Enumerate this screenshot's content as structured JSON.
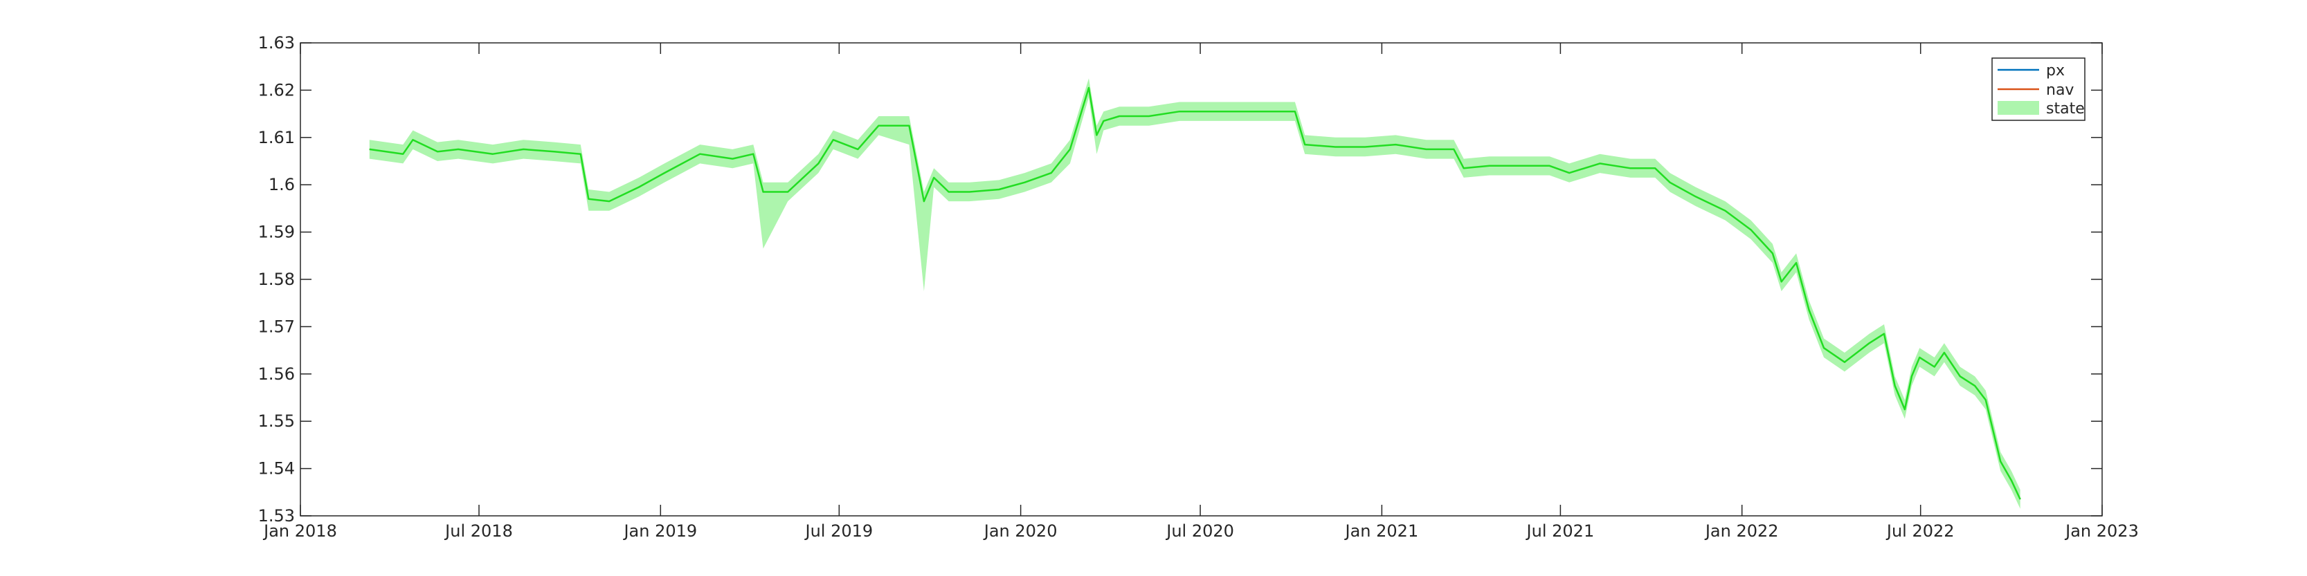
{
  "chart_data": {
    "type": "line",
    "title": "",
    "xlabel": "",
    "ylabel": "",
    "xlim": [
      "2018-01-01",
      "2023-01-01"
    ],
    "ylim": [
      1.53,
      1.63
    ],
    "yticks": [
      1.53,
      1.54,
      1.55,
      1.56,
      1.57,
      1.58,
      1.59,
      1.6,
      1.61,
      1.62,
      1.63
    ],
    "ytick_labels": [
      "1.53",
      "1.54",
      "1.55",
      "1.56",
      "1.57",
      "1.58",
      "1.59",
      "1.6",
      "1.61",
      "1.62",
      "1.63"
    ],
    "xticks": [
      "2018-01-01",
      "2018-07-01",
      "2019-01-01",
      "2019-07-01",
      "2020-01-01",
      "2020-07-01",
      "2021-01-01",
      "2021-07-01",
      "2022-01-01",
      "2022-07-01",
      "2023-01-01"
    ],
    "xtick_labels": [
      "Jan 2018",
      "Jul 2018",
      "Jan 2019",
      "Jul 2019",
      "Jan 2020",
      "Jul 2020",
      "Jan 2021",
      "Jul 2021",
      "Jan 2022",
      "Jul 2022",
      "Jan 2023"
    ],
    "grid": false,
    "legend": {
      "placement": "top-right",
      "entries": [
        {
          "label": "px",
          "kind": "line",
          "color": "#0072BD"
        },
        {
          "label": "nav",
          "kind": "line",
          "color": "#D95319"
        },
        {
          "label": "state",
          "kind": "band",
          "color": "#ADF5AD"
        }
      ]
    },
    "series": [
      {
        "name": "px",
        "color": "#0072BD",
        "x": [
          "2018-03-12",
          "2018-04-15",
          "2018-04-25",
          "2018-05-20",
          "2018-06-10",
          "2018-07-15",
          "2018-08-15",
          "2018-09-15",
          "2018-10-12",
          "2018-10-20",
          "2018-11-10",
          "2018-12-10",
          "2019-01-05",
          "2019-02-10",
          "2019-03-15",
          "2019-04-05",
          "2019-04-15",
          "2019-05-10",
          "2019-06-10",
          "2019-06-25",
          "2019-07-20",
          "2019-08-10",
          "2019-09-10",
          "2019-09-25",
          "2019-10-05",
          "2019-10-20",
          "2019-11-10",
          "2019-12-10",
          "2020-01-05",
          "2020-02-01",
          "2020-02-20",
          "2020-03-10",
          "2020-03-18",
          "2020-03-25",
          "2020-04-10",
          "2020-05-10",
          "2020-06-10",
          "2020-07-10",
          "2020-08-10",
          "2020-09-10",
          "2020-10-05",
          "2020-10-15",
          "2020-11-15",
          "2020-12-15",
          "2021-01-15",
          "2021-02-15",
          "2021-03-15",
          "2021-03-25",
          "2021-04-20",
          "2021-05-20",
          "2021-06-20",
          "2021-07-10",
          "2021-08-10",
          "2021-09-10",
          "2021-10-05",
          "2021-10-20",
          "2021-11-15",
          "2021-12-15",
          "2022-01-10",
          "2022-02-01",
          "2022-02-10",
          "2022-02-25",
          "2022-03-10",
          "2022-03-25",
          "2022-04-15",
          "2022-05-10",
          "2022-05-25",
          "2022-06-05",
          "2022-06-15",
          "2022-06-22",
          "2022-06-30",
          "2022-07-15",
          "2022-07-25",
          "2022-08-10",
          "2022-08-25",
          "2022-09-05",
          "2022-09-20",
          "2022-10-01",
          "2022-10-10"
        ],
        "values": [
          1.6075,
          1.6065,
          1.6095,
          1.607,
          1.6075,
          1.6065,
          1.6075,
          1.607,
          1.6065,
          1.597,
          1.5965,
          1.5995,
          1.6025,
          1.6065,
          1.6055,
          1.6065,
          1.5985,
          1.5985,
          1.6045,
          1.6095,
          1.6075,
          1.6125,
          1.6125,
          1.5965,
          1.6015,
          1.5985,
          1.5985,
          1.599,
          1.6005,
          1.6025,
          1.6075,
          1.6205,
          1.6105,
          1.6135,
          1.6145,
          1.6145,
          1.6155,
          1.6155,
          1.6155,
          1.6155,
          1.6155,
          1.6085,
          1.608,
          1.608,
          1.6085,
          1.6075,
          1.6075,
          1.6035,
          1.604,
          1.604,
          1.604,
          1.6025,
          1.6045,
          1.6035,
          1.6035,
          1.6005,
          1.5975,
          1.5945,
          1.5905,
          1.5855,
          1.5795,
          1.5835,
          1.5735,
          1.5655,
          1.5625,
          1.5665,
          1.5685,
          1.5575,
          1.5525,
          1.5595,
          1.5635,
          1.5615,
          1.5645,
          1.5595,
          1.5575,
          1.5545,
          1.5415,
          1.5375,
          1.5335
        ]
      },
      {
        "name": "nav",
        "color": "#D95319",
        "x": [
          "2018-03-12",
          "2018-04-15",
          "2018-04-25",
          "2018-05-20",
          "2018-06-10",
          "2018-07-15",
          "2018-08-15",
          "2018-09-15",
          "2018-10-12",
          "2018-10-20",
          "2018-11-10",
          "2018-12-10",
          "2019-01-05",
          "2019-02-10",
          "2019-03-15",
          "2019-04-05",
          "2019-04-15",
          "2019-05-10",
          "2019-06-10",
          "2019-06-25",
          "2019-07-20",
          "2019-08-10",
          "2019-09-10",
          "2019-09-25",
          "2019-10-05",
          "2019-10-20",
          "2019-11-10",
          "2019-12-10",
          "2020-01-05",
          "2020-02-01",
          "2020-02-20",
          "2020-03-10",
          "2020-03-18",
          "2020-03-25",
          "2020-04-10",
          "2020-05-10",
          "2020-06-10",
          "2020-07-10",
          "2020-08-10",
          "2020-09-10",
          "2020-10-05",
          "2020-10-15",
          "2020-11-15",
          "2020-12-15",
          "2021-01-15",
          "2021-02-15",
          "2021-03-15",
          "2021-03-25",
          "2021-04-20",
          "2021-05-20",
          "2021-06-20",
          "2021-07-10",
          "2021-08-10",
          "2021-09-10",
          "2021-10-05",
          "2021-10-20",
          "2021-11-15",
          "2021-12-15",
          "2022-01-10",
          "2022-02-01",
          "2022-02-10",
          "2022-02-25",
          "2022-03-10",
          "2022-03-25",
          "2022-04-15",
          "2022-05-10",
          "2022-05-25",
          "2022-06-05",
          "2022-06-15",
          "2022-06-22",
          "2022-06-30",
          "2022-07-15",
          "2022-07-25",
          "2022-08-10",
          "2022-08-25",
          "2022-09-05",
          "2022-09-20",
          "2022-10-01",
          "2022-10-10"
        ],
        "values": [
          1.6075,
          1.6065,
          1.6095,
          1.607,
          1.6075,
          1.6065,
          1.6075,
          1.607,
          1.6065,
          1.597,
          1.5965,
          1.5995,
          1.6025,
          1.6065,
          1.6055,
          1.6065,
          1.5985,
          1.5985,
          1.6045,
          1.6095,
          1.6075,
          1.6125,
          1.6125,
          1.5965,
          1.6015,
          1.5985,
          1.5985,
          1.599,
          1.6005,
          1.6025,
          1.6075,
          1.6205,
          1.6105,
          1.6135,
          1.6145,
          1.6145,
          1.6155,
          1.6155,
          1.6155,
          1.6155,
          1.6155,
          1.6085,
          1.608,
          1.608,
          1.6085,
          1.6075,
          1.6075,
          1.6035,
          1.604,
          1.604,
          1.604,
          1.6025,
          1.6045,
          1.6035,
          1.6035,
          1.6005,
          1.5975,
          1.5945,
          1.5905,
          1.5855,
          1.5795,
          1.5835,
          1.5735,
          1.5655,
          1.5625,
          1.5665,
          1.5685,
          1.5575,
          1.5525,
          1.5595,
          1.5635,
          1.5615,
          1.5645,
          1.5595,
          1.5575,
          1.5545,
          1.5415,
          1.5375,
          1.5335
        ]
      },
      {
        "name": "state",
        "color": "#22DD22",
        "x": [
          "2018-03-12",
          "2018-04-15",
          "2018-04-25",
          "2018-05-20",
          "2018-06-10",
          "2018-07-15",
          "2018-08-15",
          "2018-09-15",
          "2018-10-12",
          "2018-10-20",
          "2018-11-10",
          "2018-12-10",
          "2019-01-05",
          "2019-02-10",
          "2019-03-15",
          "2019-04-05",
          "2019-04-15",
          "2019-05-10",
          "2019-06-10",
          "2019-06-25",
          "2019-07-20",
          "2019-08-10",
          "2019-09-10",
          "2019-09-25",
          "2019-10-05",
          "2019-10-20",
          "2019-11-10",
          "2019-12-10",
          "2020-01-05",
          "2020-02-01",
          "2020-02-20",
          "2020-03-10",
          "2020-03-18",
          "2020-03-25",
          "2020-04-10",
          "2020-05-10",
          "2020-06-10",
          "2020-07-10",
          "2020-08-10",
          "2020-09-10",
          "2020-10-05",
          "2020-10-15",
          "2020-11-15",
          "2020-12-15",
          "2021-01-15",
          "2021-02-15",
          "2021-03-15",
          "2021-03-25",
          "2021-04-20",
          "2021-05-20",
          "2021-06-20",
          "2021-07-10",
          "2021-08-10",
          "2021-09-10",
          "2021-10-05",
          "2021-10-20",
          "2021-11-15",
          "2021-12-15",
          "2022-01-10",
          "2022-02-01",
          "2022-02-10",
          "2022-02-25",
          "2022-03-10",
          "2022-03-25",
          "2022-04-15",
          "2022-05-10",
          "2022-05-25",
          "2022-06-05",
          "2022-06-15",
          "2022-06-22",
          "2022-06-30",
          "2022-07-15",
          "2022-07-25",
          "2022-08-10",
          "2022-08-25",
          "2022-09-05",
          "2022-09-20",
          "2022-10-01",
          "2022-10-10"
        ],
        "values": [
          1.6075,
          1.6065,
          1.6095,
          1.607,
          1.6075,
          1.6065,
          1.6075,
          1.607,
          1.6065,
          1.597,
          1.5965,
          1.5995,
          1.6025,
          1.6065,
          1.6055,
          1.6065,
          1.5985,
          1.5985,
          1.6045,
          1.6095,
          1.6075,
          1.6125,
          1.6125,
          1.5965,
          1.6015,
          1.5985,
          1.5985,
          1.599,
          1.6005,
          1.6025,
          1.6075,
          1.6205,
          1.6105,
          1.6135,
          1.6145,
          1.6145,
          1.6155,
          1.6155,
          1.6155,
          1.6155,
          1.6155,
          1.6085,
          1.608,
          1.608,
          1.6085,
          1.6075,
          1.6075,
          1.6035,
          1.604,
          1.604,
          1.604,
          1.6025,
          1.6045,
          1.6035,
          1.6035,
          1.6005,
          1.5975,
          1.5945,
          1.5905,
          1.5855,
          1.5795,
          1.5835,
          1.5735,
          1.5655,
          1.5625,
          1.5665,
          1.5685,
          1.5575,
          1.5525,
          1.5595,
          1.5635,
          1.5615,
          1.5645,
          1.5595,
          1.5575,
          1.5545,
          1.5415,
          1.5375,
          1.5335
        ],
        "band_lower": [
          1.6055,
          1.6045,
          1.6075,
          1.605,
          1.6055,
          1.6045,
          1.6055,
          1.605,
          1.6045,
          1.5945,
          1.5945,
          1.5975,
          1.6005,
          1.6045,
          1.6035,
          1.6045,
          1.5865,
          1.5965,
          1.6025,
          1.6075,
          1.6055,
          1.6105,
          1.6085,
          1.5775,
          1.5995,
          1.5965,
          1.5965,
          1.597,
          1.5985,
          1.6005,
          1.6045,
          1.6185,
          1.6065,
          1.6115,
          1.6125,
          1.6125,
          1.6135,
          1.6135,
          1.6135,
          1.6135,
          1.6135,
          1.6065,
          1.606,
          1.606,
          1.6065,
          1.6055,
          1.6055,
          1.6015,
          1.602,
          1.602,
          1.602,
          1.6005,
          1.6025,
          1.6015,
          1.6015,
          1.5985,
          1.5955,
          1.5925,
          1.5885,
          1.5835,
          1.5775,
          1.5815,
          1.5715,
          1.5635,
          1.5605,
          1.5645,
          1.5665,
          1.5555,
          1.5505,
          1.5575,
          1.5615,
          1.5595,
          1.5625,
          1.5575,
          1.5555,
          1.5525,
          1.5395,
          1.5355,
          1.5315
        ],
        "band_upper": [
          1.6095,
          1.6085,
          1.6115,
          1.609,
          1.6095,
          1.6085,
          1.6095,
          1.609,
          1.6085,
          1.599,
          1.5985,
          1.6015,
          1.6045,
          1.6085,
          1.6075,
          1.6085,
          1.6005,
          1.6005,
          1.6065,
          1.6115,
          1.6095,
          1.6145,
          1.6145,
          1.5985,
          1.6035,
          1.6005,
          1.6005,
          1.601,
          1.6025,
          1.6045,
          1.6095,
          1.6225,
          1.6125,
          1.6155,
          1.6165,
          1.6165,
          1.6175,
          1.6175,
          1.6175,
          1.6175,
          1.6175,
          1.6105,
          1.61,
          1.61,
          1.6105,
          1.6095,
          1.6095,
          1.6055,
          1.606,
          1.606,
          1.606,
          1.6045,
          1.6065,
          1.6055,
          1.6055,
          1.6025,
          1.5995,
          1.5965,
          1.5925,
          1.5875,
          1.5815,
          1.5855,
          1.5755,
          1.5675,
          1.5645,
          1.5685,
          1.5705,
          1.5595,
          1.5545,
          1.5615,
          1.5655,
          1.5635,
          1.5665,
          1.5615,
          1.5595,
          1.5565,
          1.5435,
          1.5395,
          1.5355
        ]
      }
    ]
  }
}
